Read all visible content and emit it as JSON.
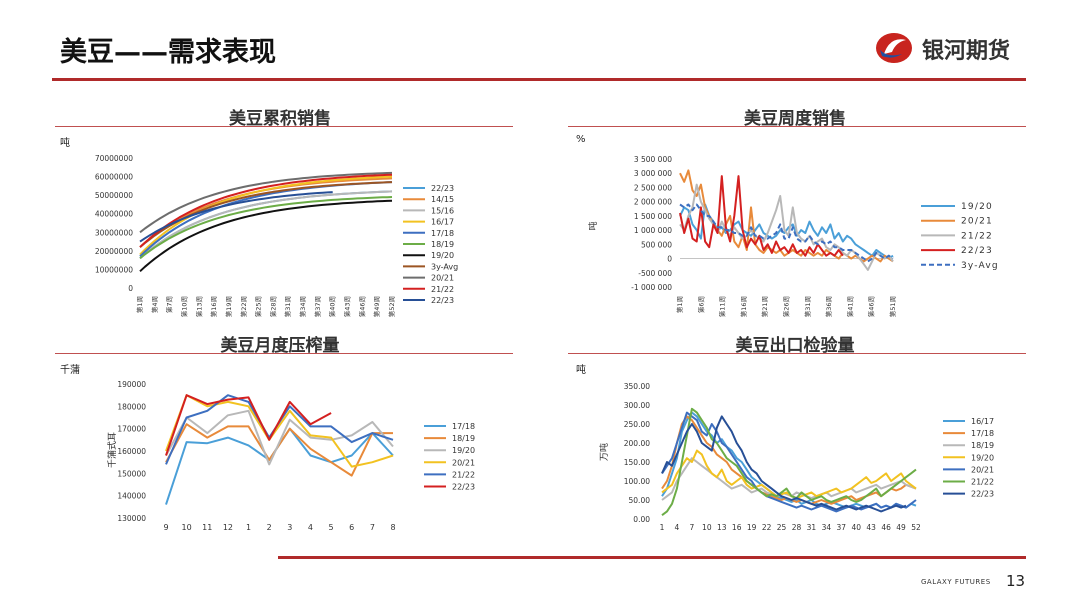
{
  "header": {
    "title": "美豆——需求表现",
    "logo_text": "银河期货"
  },
  "footer": {
    "company": "GALAXY FUTURES",
    "page_number": "13"
  },
  "colors": {
    "accent": "#b02a2a"
  },
  "chart_data": [
    {
      "id": "cum",
      "type": "line",
      "title": "美豆累积销售",
      "unit": "吨",
      "ylabel": "",
      "ylim": [
        0,
        70000000
      ],
      "y_ticks": [
        0,
        10000000,
        20000000,
        30000000,
        40000000,
        50000000,
        60000000,
        70000000
      ],
      "y_tick_labels": [
        "0",
        "10000000",
        "20000000",
        "30000000",
        "40000000",
        "50000000",
        "60000000",
        "70000000"
      ],
      "x_count": 52,
      "x_tick_labels": [
        "第1周",
        "第4周",
        "第7周",
        "第10周",
        "第13周",
        "第16周",
        "第19周",
        "第22周",
        "第25周",
        "第28周",
        "第31周",
        "第34周",
        "第37周",
        "第40周",
        "第43周",
        "第46周",
        "第49周",
        "第52周"
      ],
      "legend_position": "right",
      "series": [
        {
          "name": "22/23",
          "color": "#4a9fd8",
          "shape": "cum",
          "start": 16,
          "end": 52,
          "weeks": 52
        },
        {
          "name": "14/15",
          "color": "#e88a3a",
          "shape": "cum",
          "start": 22,
          "end": 59,
          "weeks": 52
        },
        {
          "name": "15/16",
          "color": "#b8b8b8",
          "shape": "cum",
          "start": 16,
          "end": 52,
          "weeks": 52
        },
        {
          "name": "16/17",
          "color": "#f2c221",
          "shape": "cum",
          "start": 18,
          "end": 60,
          "weeks": 52
        },
        {
          "name": "17/18",
          "color": "#3d6fc0",
          "shape": "cum",
          "start": 17,
          "end": 57,
          "weeks": 52
        },
        {
          "name": "18/19",
          "color": "#6cad47",
          "shape": "cum",
          "start": 16,
          "end": 49,
          "weeks": 52
        },
        {
          "name": "19/20",
          "color": "#111111",
          "shape": "cum",
          "start": 9,
          "end": 47,
          "weeks": 52
        },
        {
          "name": "3y-Avg",
          "color": "#9c5523",
          "shape": "cum",
          "start": 22,
          "end": 57,
          "weeks": 52
        },
        {
          "name": "20/21",
          "color": "#6d6d6d",
          "shape": "cum",
          "start": 30,
          "end": 62,
          "weeks": 52
        },
        {
          "name": "21/22",
          "color": "#d42020",
          "shape": "cum",
          "start": 22,
          "end": 61,
          "weeks": 52
        },
        {
          "name": "22/23",
          "color": "#274f96",
          "shape": "cum",
          "start": 25,
          "end": 53,
          "weeks": 40
        }
      ]
    },
    {
      "id": "weekly",
      "type": "line",
      "title": "美豆周度销售",
      "unit": "%",
      "ylabel": "吨",
      "ylim": [
        -1000000,
        3500000
      ],
      "y_ticks": [
        -1000000,
        -500000,
        0,
        500000,
        1000000,
        1500000,
        2000000,
        2500000,
        3000000,
        3500000
      ],
      "y_tick_labels": [
        "-1 000 000",
        "-500 000",
        "0",
        "500 000",
        "1 000 000",
        "1 500 000",
        "2 000 000",
        "2 500 000",
        "3 000 000",
        "3 500 000"
      ],
      "x_count": 52,
      "x_tick_labels": [
        "第1周",
        "第6周",
        "第11周",
        "第16周",
        "第21周",
        "第26周",
        "第31周",
        "第36周",
        "第41周",
        "第46周",
        "第51周"
      ],
      "legend_position": "right",
      "series": [
        {
          "name": "19/20",
          "color": "#4a9fd8",
          "dash": false
        },
        {
          "name": "20/21",
          "color": "#e88a3a",
          "dash": false
        },
        {
          "name": "21/22",
          "color": "#b8b8b8",
          "dash": false
        },
        {
          "name": "22/23",
          "color": "#d42020",
          "dash": false
        },
        {
          "name": "3y-Avg",
          "color": "#3d6fc0",
          "dash": true
        }
      ],
      "values": {
        "19/20": [
          1500000,
          1800000,
          1700000,
          1200000,
          1000000,
          700000,
          1900000,
          1500000,
          1300000,
          1000000,
          1100000,
          900000,
          1000000,
          1200000,
          1300000,
          1000000,
          900000,
          800000,
          1000000,
          1200000,
          900000,
          800000,
          700000,
          800000,
          1000000,
          900000,
          1100000,
          1200000,
          800000,
          1000000,
          900000,
          1300000,
          1000000,
          800000,
          1100000,
          900000,
          1200000,
          700000,
          900000,
          600000,
          800000,
          700000,
          500000,
          400000,
          300000,
          200000,
          100000,
          300000,
          200000,
          100000,
          0,
          100000
        ],
        "20/21": [
          3000000,
          2700000,
          3100000,
          2400000,
          2200000,
          2600000,
          1800000,
          1500000,
          1200000,
          1000000,
          800000,
          1200000,
          1500000,
          600000,
          400000,
          800000,
          300000,
          1800000,
          500000,
          300000,
          200000,
          400000,
          300000,
          200000,
          300000,
          100000,
          200000,
          300000,
          200000,
          100000,
          300000,
          200000,
          100000,
          200000,
          100000,
          300000,
          200000,
          100000,
          0,
          200000,
          100000,
          0,
          100000,
          0,
          -100000,
          0,
          100000,
          0,
          -100000,
          100000,
          0,
          -100000
        ],
        "21/22": [
          1200000,
          1000000,
          1500000,
          1800000,
          2600000,
          2000000,
          1700000,
          1400000,
          1200000,
          900000,
          1300000,
          1000000,
          800000,
          1100000,
          900000,
          700000,
          800000,
          1000000,
          800000,
          700000,
          600000,
          900000,
          1300000,
          1700000,
          2200000,
          1000000,
          800000,
          1800000,
          900000,
          700000,
          600000,
          800000,
          500000,
          600000,
          700000,
          400000,
          300000,
          500000,
          400000,
          200000,
          100000,
          300000,
          200000,
          0,
          -200000,
          -400000,
          -100000,
          200000,
          100000,
          0,
          100000,
          -100000
        ],
        "22/23": [
          1600000,
          900000,
          1400000,
          700000,
          600000,
          1800000,
          600000,
          400000,
          1200000,
          900000,
          2900000,
          1100000,
          600000,
          1500000,
          2900000,
          1000000,
          400000,
          700000,
          500000,
          800000,
          300000,
          500000,
          200000,
          600000,
          300000,
          400000,
          200000,
          500000,
          200000,
          300000,
          100000,
          400000,
          200000,
          500000,
          300000,
          100000,
          200000,
          100000,
          300000,
          100000,
          null,
          null,
          null,
          null,
          null,
          null,
          null,
          null,
          null,
          null,
          null,
          null
        ],
        "3y-Avg": [
          1900000,
          1800000,
          1900000,
          1700000,
          1900000,
          1700000,
          1500000,
          1500000,
          1300000,
          1100000,
          1100000,
          1000000,
          1000000,
          900000,
          900000,
          800000,
          800000,
          1100000,
          800000,
          800000,
          700000,
          700000,
          800000,
          900000,
          1200000,
          700000,
          700000,
          1100000,
          700000,
          600000,
          600000,
          800000,
          600000,
          500000,
          600000,
          500000,
          600000,
          400000,
          400000,
          300000,
          300000,
          300000,
          200000,
          100000,
          0,
          -100000,
          0,
          200000,
          100000,
          0,
          100000,
          0
        ]
      }
    },
    {
      "id": "crush",
      "type": "line",
      "title": "美豆月度压榨量",
      "unit": "千蒲",
      "ylabel": "千蒲式耳",
      "ylim": [
        130000,
        190000
      ],
      "y_ticks": [
        130000,
        140000,
        150000,
        160000,
        170000,
        180000,
        190000
      ],
      "y_tick_labels": [
        "130000",
        "140000",
        "150000",
        "160000",
        "170000",
        "180000",
        "190000"
      ],
      "categories": [
        "9",
        "10",
        "11",
        "12",
        "1",
        "2",
        "3",
        "4",
        "5",
        "6",
        "7",
        "8"
      ],
      "legend_position": "right",
      "series": [
        {
          "name": "17/18",
          "color": "#4a9fd8",
          "values": [
            136000,
            164000,
            163500,
            166000,
            162500,
            156000,
            170000,
            158000,
            155000,
            158000,
            168000,
            158000
          ]
        },
        {
          "name": "18/19",
          "color": "#e88a3a",
          "values": [
            155000,
            172000,
            166000,
            171000,
            171000,
            156000,
            170000,
            161000,
            155000,
            149000,
            168000,
            168000
          ]
        },
        {
          "name": "19/20",
          "color": "#b8b8b8",
          "values": [
            158000,
            175000,
            168000,
            176000,
            178000,
            154000,
            174000,
            166000,
            165000,
            167000,
            173000,
            162000
          ]
        },
        {
          "name": "20/21",
          "color": "#f2c221",
          "values": [
            160000,
            185000,
            180000,
            182000,
            180000,
            165000,
            178000,
            167000,
            166000,
            153000,
            155000,
            158000
          ]
        },
        {
          "name": "21/22",
          "color": "#3d6fc0",
          "values": [
            154000,
            175000,
            178000,
            185000,
            182000,
            166000,
            180000,
            171000,
            171000,
            164000,
            168000,
            165000
          ]
        },
        {
          "name": "22/23",
          "color": "#d42020",
          "values": [
            158000,
            185000,
            181000,
            183000,
            184000,
            165000,
            182000,
            172000,
            177000,
            null,
            null,
            null
          ]
        }
      ]
    },
    {
      "id": "inspect",
      "type": "line",
      "title": "美豆出口检验量",
      "unit": "吨",
      "ylabel": "万吨",
      "ylim": [
        0,
        350
      ],
      "y_ticks": [
        0,
        50,
        100,
        150,
        200,
        250,
        300,
        350
      ],
      "y_tick_labels": [
        "0.00",
        "50.00",
        "100.00",
        "150.00",
        "200.00",
        "250.00",
        "300.00",
        "350.00"
      ],
      "x_count": 52,
      "x_tick_labels": [
        "1",
        "4",
        "7",
        "10",
        "13",
        "16",
        "19",
        "22",
        "25",
        "28",
        "31",
        "34",
        "37",
        "40",
        "43",
        "46",
        "49",
        "52"
      ],
      "legend_position": "right",
      "series": [
        {
          "name": "16/17",
          "color": "#4a9fd8"
        },
        {
          "name": "17/18",
          "color": "#e88a3a"
        },
        {
          "name": "18/19",
          "color": "#b8b8b8"
        },
        {
          "name": "19/20",
          "color": "#f2c221"
        },
        {
          "name": "20/21",
          "color": "#3d6fc0"
        },
        {
          "name": "21/22",
          "color": "#6cad47"
        },
        {
          "name": "22/23",
          "color": "#274f96"
        }
      ],
      "values": {
        "16/17": [
          60,
          80,
          120,
          160,
          230,
          260,
          280,
          270,
          250,
          230,
          220,
          200,
          210,
          190,
          180,
          160,
          150,
          130,
          110,
          100,
          90,
          80,
          70,
          60,
          55,
          50,
          45,
          50,
          40,
          45,
          50,
          40,
          35,
          40,
          45,
          40,
          35,
          30,
          35,
          40,
          35,
          30,
          35,
          40,
          30,
          35,
          30,
          40,
          35,
          30,
          40,
          35
        ],
        "17/18": [
          80,
          100,
          140,
          200,
          250,
          270,
          260,
          240,
          220,
          200,
          190,
          170,
          160,
          150,
          130,
          120,
          110,
          100,
          90,
          80,
          70,
          65,
          60,
          55,
          50,
          55,
          50,
          45,
          50,
          45,
          40,
          45,
          50,
          45,
          40,
          45,
          50,
          55,
          60,
          50,
          55,
          60,
          65,
          70,
          60,
          70,
          80,
          75,
          80,
          90,
          85,
          80
        ],
        "18/19": [
          50,
          60,
          70,
          100,
          120,
          140,
          160,
          150,
          140,
          130,
          120,
          110,
          100,
          90,
          80,
          85,
          90,
          80,
          70,
          75,
          80,
          70,
          65,
          60,
          70,
          65,
          60,
          70,
          65,
          60,
          55,
          60,
          65,
          70,
          60,
          65,
          70,
          75,
          80,
          70,
          75,
          80,
          85,
          90,
          80,
          85,
          90,
          95,
          100,
          90,
          85,
          80
        ],
        "19/20": [
          70,
          80,
          90,
          120,
          140,
          160,
          150,
          180,
          170,
          140,
          120,
          110,
          130,
          100,
          90,
          100,
          110,
          90,
          80,
          85,
          90,
          80,
          70,
          60,
          65,
          70,
          60,
          55,
          60,
          65,
          70,
          60,
          65,
          70,
          75,
          80,
          70,
          75,
          80,
          90,
          100,
          110,
          95,
          100,
          110,
          120,
          100,
          110,
          120,
          100,
          90,
          80
        ],
        "20/21": [
          120,
          140,
          160,
          200,
          240,
          280,
          270,
          260,
          230,
          220,
          250,
          230,
          200,
          190,
          170,
          150,
          130,
          110,
          100,
          80,
          70,
          60,
          55,
          50,
          45,
          40,
          35,
          30,
          35,
          30,
          25,
          30,
          35,
          30,
          25,
          20,
          25,
          30,
          35,
          30,
          25,
          30,
          35,
          40,
          30,
          35,
          30,
          40,
          35,
          30,
          40,
          50
        ],
        "21/22": [
          10,
          20,
          40,
          80,
          150,
          220,
          290,
          280,
          260,
          240,
          210,
          200,
          180,
          160,
          150,
          140,
          120,
          100,
          90,
          80,
          70,
          60,
          65,
          60,
          70,
          80,
          60,
          55,
          70,
          60,
          50,
          55,
          60,
          50,
          45,
          50,
          55,
          60,
          50,
          45,
          50,
          60,
          70,
          80,
          60,
          70,
          80,
          90,
          100,
          110,
          120,
          130
        ],
        "22/23": [
          120,
          150,
          140,
          170,
          200,
          230,
          250,
          230,
          200,
          190,
          180,
          240,
          270,
          250,
          230,
          200,
          180,
          150,
          130,
          120,
          100,
          90,
          80,
          70,
          60,
          55,
          50,
          55,
          50,
          45,
          40,
          35,
          40,
          35,
          30,
          25,
          30,
          35,
          30,
          25,
          30,
          35,
          30,
          25,
          20,
          25,
          30,
          35,
          30,
          35,
          null,
          null
        ]
      }
    }
  ]
}
